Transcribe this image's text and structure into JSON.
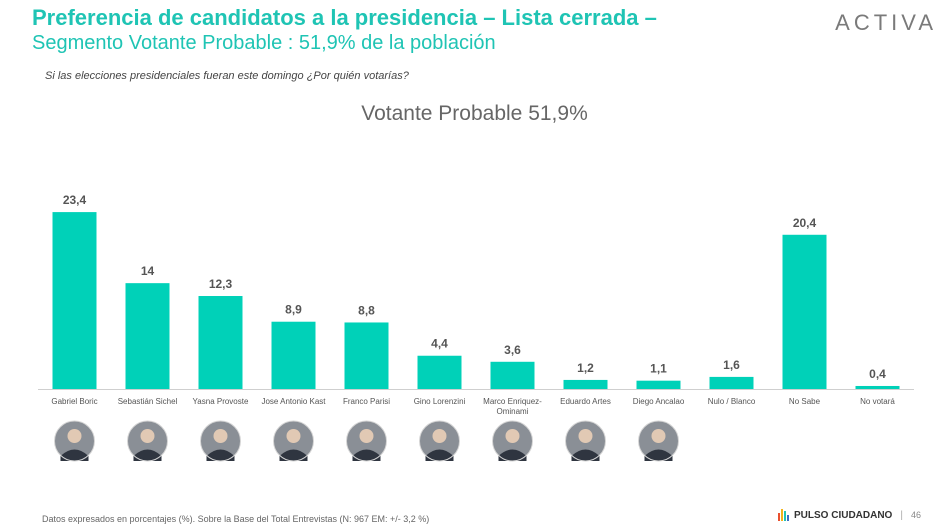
{
  "header": {
    "title": "Preferencia de candidatos a la presidencia – Lista cerrada –",
    "subtitle": "Segmento Votante Probable : 51,9% de la población",
    "brand": "ACTIVA"
  },
  "question": "Si las elecciones presidenciales fueran este domingo ¿Por quién votarías?",
  "chart_data": {
    "type": "bar",
    "title": "Votante Probable 51,9%",
    "categories": [
      "Gabriel Boric",
      "Sebastián Sichel",
      "Yasna Provoste",
      "Jose Antonio Kast",
      "Franco Parisi",
      "Gino Lorenzini",
      "Marco Enriquez-Ominami",
      "Eduardo Artes",
      "Diego Ancalao",
      "Nulo / Blanco",
      "No Sabe",
      "No votará"
    ],
    "values": [
      23.4,
      14,
      12.3,
      8.9,
      8.8,
      4.4,
      3.6,
      1.2,
      1.1,
      1.6,
      20.4,
      0.4
    ],
    "value_labels": [
      "23,4",
      "14",
      "12,3",
      "8,9",
      "8,8",
      "4,4",
      "3,6",
      "1,2",
      "1,1",
      "1,6",
      "20,4",
      "0,4"
    ],
    "ylim": [
      0,
      25
    ],
    "color": "#00d1b8",
    "grid": false,
    "photos": [
      true,
      true,
      true,
      true,
      true,
      true,
      true,
      true,
      true,
      false,
      false,
      false
    ]
  },
  "footer": {
    "note": "Datos expresados en porcentajes (%). Sobre la Base del Total Entrevistas (N: 967  EM: +/- 3,2 %)",
    "logo_text": "PULSO CIUDADANO",
    "separator": "|",
    "page": "46"
  },
  "icons": {
    "candidate_photo": "person-photo-icon"
  }
}
